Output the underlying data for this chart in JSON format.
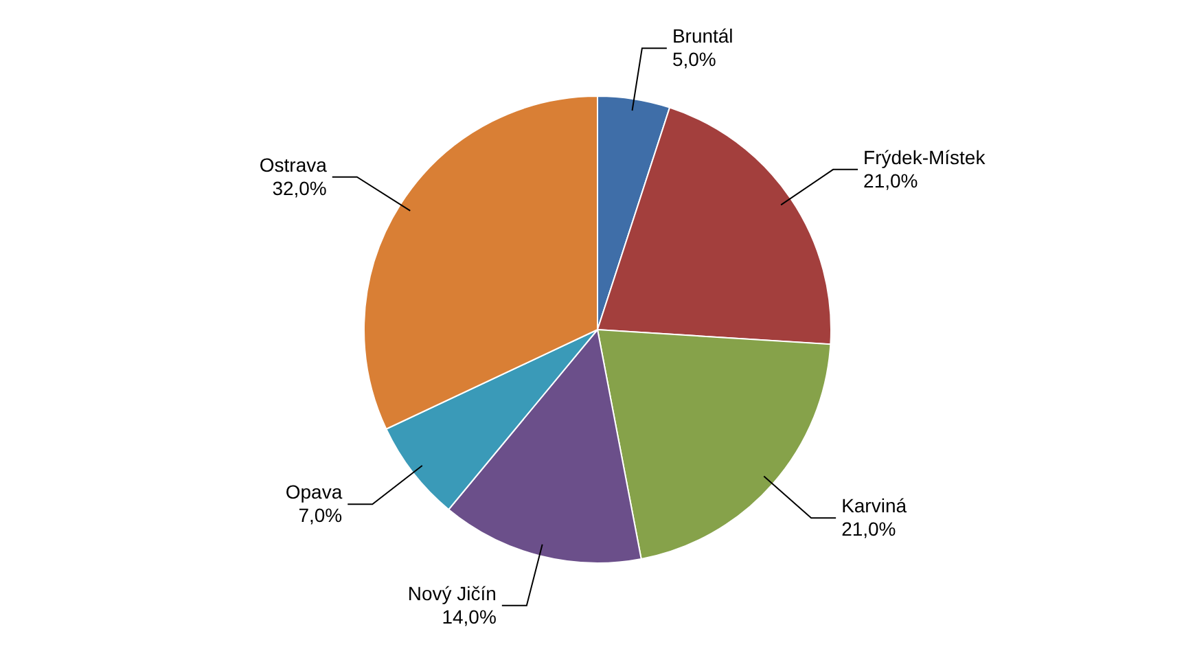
{
  "chart_data": {
    "type": "pie",
    "categories": [
      "Bruntál",
      "Frýdek-Místek",
      "Karviná",
      "Nový Jičín",
      "Opava",
      "Ostrava"
    ],
    "values": [
      5,
      21,
      21,
      14,
      7,
      32
    ],
    "colors": [
      "#3f6ea8",
      "#a33f3d",
      "#86a24a",
      "#6b4f8a",
      "#3a9ab8",
      "#d97f35"
    ],
    "value_labels": [
      "5,0%",
      "21,0%",
      "21,0%",
      "14,0%",
      "7,0%",
      "32,0%"
    ]
  }
}
